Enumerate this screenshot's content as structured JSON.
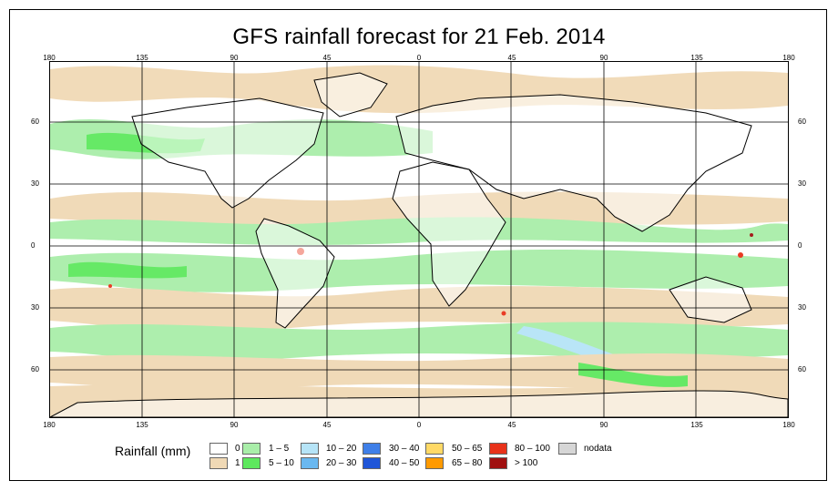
{
  "title": "GFS rainfall forecast for 21 Feb. 2014",
  "axes": {
    "lon_ticks": [
      "180",
      "135",
      "90",
      "45",
      "0",
      "45",
      "90",
      "135",
      "180"
    ],
    "lat_ticks": [
      "60",
      "30",
      "0",
      "30",
      "60"
    ]
  },
  "legend": {
    "title": "Rainfall (mm)",
    "items": [
      {
        "label": "0",
        "color": "#ffffff"
      },
      {
        "label": "1",
        "color": "#f0d9b5"
      },
      {
        "label": "1 – 5",
        "color": "#a9eea9"
      },
      {
        "label": "5 – 10",
        "color": "#5ee85e"
      },
      {
        "label": "10 – 20",
        "color": "#b6e4f7"
      },
      {
        "label": "20 – 30",
        "color": "#6ab8f0"
      },
      {
        "label": "30 – 40",
        "color": "#3f7fe8"
      },
      {
        "label": "40 – 50",
        "color": "#1f55d8"
      },
      {
        "label": "50 – 65",
        "color": "#ffd966"
      },
      {
        "label": "65 – 80",
        "color": "#ff9a00"
      },
      {
        "label": "80 – 100",
        "color": "#e8321a"
      },
      {
        "label": "> 100",
        "color": "#a01010"
      },
      {
        "label": "nodata",
        "color": "#d6d6d6"
      }
    ]
  }
}
